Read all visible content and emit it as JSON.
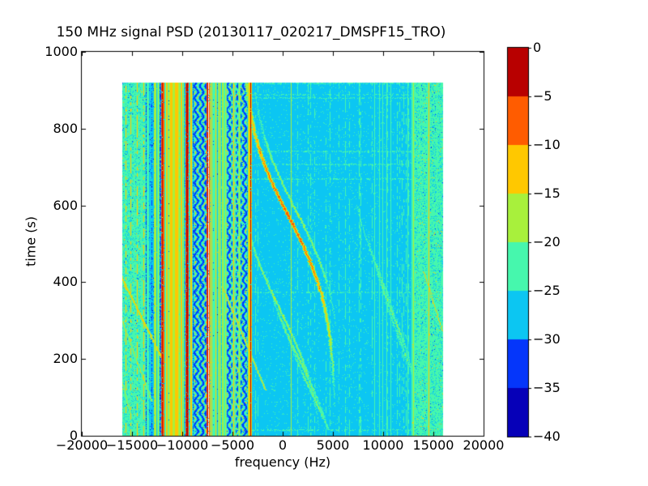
{
  "figure": {
    "background": "#ffffff"
  },
  "chart_data": {
    "type": "heatmap",
    "title": "150 MHz signal PSD (20130117_020217_DMSPF15_TRO)",
    "xlabel": "frequency (Hz)",
    "ylabel": "time (s)",
    "xlim": [
      -20000,
      20000
    ],
    "ylim": [
      0,
      1000
    ],
    "xticks": [
      -20000,
      -15000,
      -10000,
      -5000,
      0,
      5000,
      10000,
      15000,
      20000
    ],
    "yticks": [
      0,
      200,
      400,
      600,
      800,
      1000
    ],
    "grid": false,
    "colorbar": {
      "position": "right",
      "ticks": [
        0,
        -5,
        -10,
        -15,
        -20,
        -25,
        -30,
        -35,
        -40
      ],
      "segment_levels_db": [
        0,
        -5,
        -10,
        -15,
        -20,
        -25,
        -30,
        -35,
        -40
      ],
      "colors": [
        "#b80000",
        "#ff5c00",
        "#ffc800",
        "#a8f03c",
        "#46f7ad",
        "#0cc6f2",
        "#0536fa",
        "#0600b8"
      ]
    },
    "data_extent": {
      "freq_min_hz": -16000,
      "freq_max_hz": 16000,
      "time_min_s": 0,
      "time_max_s": 920
    },
    "background_level_db": -28,
    "bands": [
      {
        "f0": -16000,
        "f1": -13700,
        "style": "speckle-green",
        "base_db": -22.3,
        "desc": "green speckle band with dotted yellow carriers"
      },
      {
        "f0": -13700,
        "f1": -3300,
        "style": "busy",
        "base_db": -25.5,
        "desc": "dense interference band, green/cyan/yellow streaks"
      },
      {
        "f0": -3300,
        "f1": 12850,
        "style": "quiet",
        "base_db": -28,
        "desc": "quiet cyan background with sparse speckle"
      },
      {
        "f0": 12850,
        "f1": 16000,
        "style": "speckle-green",
        "base_db": -23.2,
        "desc": "green speckle band"
      }
    ],
    "wavy_bands": [
      {
        "f0": -8900,
        "f1": -7650
      },
      {
        "f0": -5650,
        "f1": -3600
      }
    ],
    "vertical_lines": {
      "columns": [
        "freq_hz",
        "width_hz",
        "level_db",
        "dotted"
      ],
      "rows": [
        [
          -15650,
          70,
          -13.5,
          1
        ],
        [
          -15150,
          70,
          -13.5,
          1
        ],
        [
          -14500,
          70,
          -14,
          1
        ],
        [
          -13900,
          70,
          -14.5,
          1
        ],
        [
          -14850,
          80,
          -21,
          0
        ],
        [
          -14150,
          80,
          -21,
          0
        ],
        [
          -13450,
          90,
          -20,
          0
        ],
        [
          -12700,
          90,
          -19.5,
          0
        ],
        [
          -12400,
          80,
          -17,
          0
        ],
        [
          -12000,
          100,
          -2,
          0
        ],
        [
          -11600,
          170,
          -13,
          0
        ],
        [
          -11100,
          240,
          -12,
          0
        ],
        [
          -10600,
          260,
          -12.5,
          0
        ],
        [
          -10150,
          160,
          -13,
          0
        ],
        [
          -9900,
          90,
          -19,
          0
        ],
        [
          -9550,
          100,
          -2.5,
          0
        ],
        [
          -9150,
          130,
          -13,
          0
        ],
        [
          -7450,
          200,
          -3,
          0
        ],
        [
          -7450,
          45,
          0.8,
          0
        ],
        [
          -7100,
          110,
          -13.5,
          0
        ],
        [
          -6700,
          130,
          -14,
          0
        ],
        [
          -6300,
          110,
          -13,
          0
        ],
        [
          -6000,
          100,
          -18,
          0
        ],
        [
          -5750,
          90,
          -17.5,
          0
        ],
        [
          -4900,
          100,
          -14,
          0
        ],
        [
          -4350,
          100,
          -15,
          0
        ],
        [
          -3400,
          80,
          -12.5,
          0
        ],
        [
          -3250,
          80,
          -3,
          0
        ],
        [
          800,
          80,
          -19,
          0
        ],
        [
          1450,
          60,
          -23,
          1
        ],
        [
          4700,
          60,
          -24,
          1
        ],
        [
          6200,
          60,
          -24,
          1
        ],
        [
          7600,
          60,
          -24,
          1
        ],
        [
          9100,
          80,
          -21,
          0
        ],
        [
          9600,
          80,
          -20,
          0
        ],
        [
          9950,
          70,
          -21,
          0
        ],
        [
          10350,
          70,
          -22,
          0
        ],
        [
          10700,
          70,
          -21,
          0
        ],
        [
          11350,
          60,
          -23,
          1
        ],
        [
          12450,
          80,
          -20,
          0
        ],
        [
          12950,
          90,
          -15,
          0
        ],
        [
          13600,
          80,
          -21,
          0
        ],
        [
          14500,
          100,
          -14,
          0
        ],
        [
          15300,
          80,
          -20,
          0
        ]
      ]
    },
    "linear_streaks": {
      "columns": [
        "f_ref_hz",
        "t_ref_s",
        "slope_hz_per_s",
        "t_min_s",
        "t_max_s",
        "level_db"
      ],
      "rows": [
        [
          -12000,
          200,
          -19,
          190,
          420,
          -13
        ],
        [
          -13200,
          100,
          -14,
          90,
          320,
          -16
        ],
        [
          -1900,
          130,
          -16,
          120,
          390,
          -14
        ],
        [
          15200,
          330,
          -12,
          270,
          430,
          -14
        ],
        [
          -15500,
          90,
          -10,
          60,
          300,
          -17
        ]
      ]
    },
    "doppler_curves": {
      "columns": [
        "f_center_hz",
        "t_center_s",
        "amplitude_hz",
        "tau_s",
        "peak_db",
        "t_min_s",
        "t_max_s"
      ],
      "rows": [
        [
          600,
          570,
          4700,
          240,
          -6.5,
          15,
          920
        ],
        [
          1250,
          590,
          4700,
          240,
          -17,
          260,
          900
        ],
        [
          -300,
          330,
          4500,
          240,
          -17,
          15,
          560
        ],
        [
          1600,
          200,
          4300,
          230,
          -19,
          15,
          430
        ],
        [
          2900,
          110,
          4200,
          230,
          -20,
          15,
          300
        ],
        [
          10900,
          320,
          3200,
          210,
          -20,
          60,
          620
        ],
        [
          11900,
          230,
          3100,
          210,
          -21,
          40,
          480
        ],
        [
          9500,
          430,
          3300,
          220,
          -21,
          100,
          700
        ]
      ]
    }
  }
}
